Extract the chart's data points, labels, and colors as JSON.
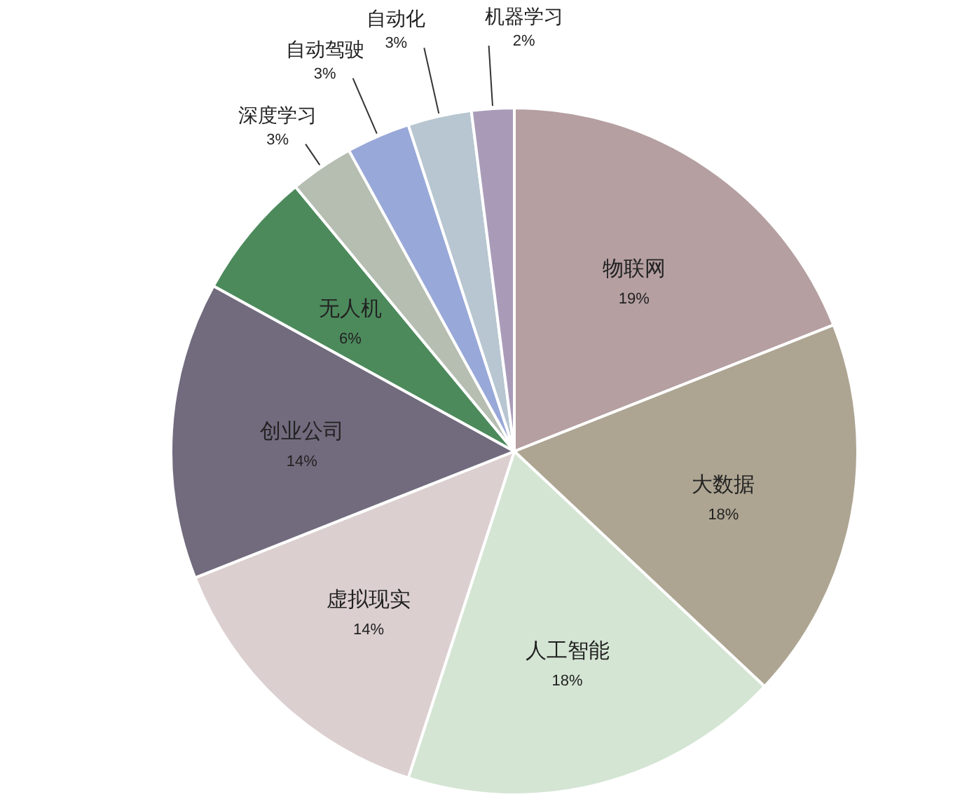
{
  "chart_data": {
    "type": "pie",
    "categories": [
      "物联网",
      "大数据",
      "人工智能",
      "虚拟现实",
      "创业公司",
      "无人机",
      "深度学习",
      "自动驾驶",
      "自动化",
      "机器学习"
    ],
    "values": [
      19,
      18,
      18,
      14,
      14,
      6,
      3,
      3,
      3,
      2
    ],
    "colors": [
      "#b59fa1",
      "#ada592",
      "#d4e5d3",
      "#dccfd0",
      "#726b7e",
      "#4c8a5c",
      "#b5beb1",
      "#98a8d8",
      "#b7c6d0",
      "#a99bb8"
    ],
    "value_labels": [
      "19%",
      "18%",
      "18%",
      "14%",
      "14%",
      "6%",
      "3%",
      "3%",
      "3%",
      "2%"
    ]
  }
}
